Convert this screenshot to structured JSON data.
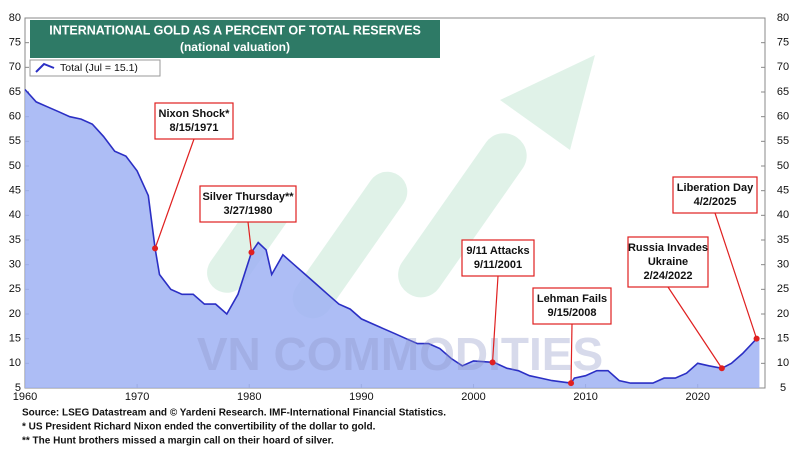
{
  "chart_data": {
    "type": "area",
    "title": "INTERNATIONAL GOLD AS A PERCENT OF TOTAL RESERVES",
    "subtitle": "(national valuation)",
    "watermark": "VN COMMODITIES",
    "series": [
      {
        "name": "Total (Jul = 15.1)",
        "color": "#2b2fc4",
        "fill": "#9fb1f3",
        "x": [
          1960,
          1961,
          1962,
          1963,
          1964,
          1965,
          1966,
          1967,
          1968,
          1969,
          1970,
          1971,
          1971.6,
          1972,
          1973,
          1974,
          1975,
          1976,
          1977,
          1978,
          1979,
          1980.2,
          1980.8,
          1981.5,
          1982,
          1983,
          1984,
          1985,
          1986,
          1987,
          1988,
          1989,
          1990,
          1991,
          1992,
          1993,
          1994,
          1995,
          1996,
          1997,
          1998,
          1999,
          2000,
          2001.7,
          2002,
          2003,
          2004,
          2005,
          2006,
          2007,
          2008.7,
          2009,
          2010,
          2011,
          2012,
          2013,
          2014,
          2015,
          2016,
          2017,
          2018,
          2019,
          2020,
          2021,
          2022.15,
          2023,
          2024,
          2025.25,
          2025.5
        ],
        "values": [
          65.5,
          63,
          62,
          61,
          60,
          59.5,
          58.5,
          56,
          53,
          52,
          49,
          44,
          33.3,
          28,
          25,
          24,
          24,
          22,
          22,
          20,
          24,
          32.5,
          34.5,
          33,
          28,
          32,
          30,
          28,
          26,
          24,
          22,
          21,
          19,
          18,
          17,
          16,
          15,
          14,
          14,
          13,
          11,
          9.5,
          10.5,
          10.2,
          10,
          9,
          8.5,
          7.5,
          7,
          6.5,
          6,
          7,
          7.5,
          8.5,
          8.5,
          6.5,
          6,
          6,
          6,
          7,
          7,
          8,
          10,
          9.5,
          9,
          10,
          12,
          15,
          15.1
        ]
      }
    ],
    "annotations": [
      {
        "lines": [
          "Nixon Shock*",
          "8/15/1971"
        ],
        "x": 1971.6,
        "y": 33.3
      },
      {
        "lines": [
          "Silver Thursday**",
          "3/27/1980"
        ],
        "x": 1980.2,
        "y": 32.5
      },
      {
        "lines": [
          "9/11 Attacks",
          "9/11/2001"
        ],
        "x": 2001.7,
        "y": 10.2
      },
      {
        "lines": [
          "Lehman Fails",
          "9/15/2008"
        ],
        "x": 2008.7,
        "y": 6
      },
      {
        "lines": [
          "Russia Invades",
          "Ukraine",
          "2/24/2022"
        ],
        "x": 2022.15,
        "y": 9
      },
      {
        "lines": [
          "Liberation Day",
          "4/2/2025"
        ],
        "x": 2025.25,
        "y": 15
      }
    ],
    "marker_color": "#e02020",
    "xlim": [
      1960,
      2026
    ],
    "xticks": [
      1960,
      1970,
      1980,
      1990,
      2000,
      2010,
      2020
    ],
    "ylim": [
      5,
      80
    ],
    "yticks": [
      5,
      10,
      15,
      20,
      25,
      30,
      35,
      40,
      45,
      50,
      55,
      60,
      65,
      70,
      75,
      80
    ],
    "y2lim": [
      5,
      80
    ],
    "y2ticks": [
      5,
      10,
      15,
      20,
      25,
      30,
      35,
      40,
      45,
      50,
      55,
      60,
      65,
      70,
      75,
      80
    ],
    "footnotes": [
      "Source: LSEG Datastream and © Yardeni Research. IMF-International Financial Statistics.",
      "* US President Richard Nixon ended the convertibility of the dollar to gold.",
      "** The Hunt brothers missed a margin call on their hoard of silver."
    ]
  }
}
